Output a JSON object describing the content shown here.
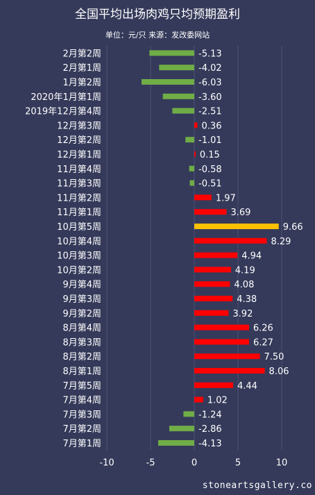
{
  "chart_data": {
    "type": "bar",
    "orientation": "horizontal",
    "title": "全国平均出场肉鸡只均预期盈利",
    "subtitle": "单位：元/只 来源：发改委网站",
    "xlim": [
      -10,
      10
    ],
    "x_ticks": [
      -10,
      -5,
      0,
      5,
      10
    ],
    "grid": true,
    "colors": {
      "positive": "#ff0000",
      "negative": "#70ad47",
      "highlight": "#ffc000"
    },
    "highlight_index": 12,
    "categories": [
      "2月第2周",
      "2月第1周",
      "1月第2周",
      "2020年1月第1周",
      "2019年12月第4周",
      "12月第3周",
      "12月第2周",
      "12月第1周",
      "11月第4周",
      "11月第3周",
      "11月第2周",
      "11月第1周",
      "10月第5周",
      "10月第4周",
      "10月第3周",
      "10月第2周",
      "9月第4周",
      "9月第3周",
      "9月第2周",
      "8月第4周",
      "8月第3周",
      "8月第2周",
      "8月第1周",
      "7月第5周",
      "7月第4周",
      "7月第3周",
      "7月第2周",
      "7月第1周"
    ],
    "values": [
      -5.13,
      -4.02,
      -6.03,
      -3.6,
      -2.51,
      0.36,
      -1.01,
      0.15,
      -0.58,
      -0.51,
      1.97,
      3.69,
      9.66,
      8.29,
      4.94,
      4.19,
      4.08,
      4.38,
      3.92,
      6.26,
      6.27,
      7.5,
      8.06,
      4.44,
      1.02,
      -1.24,
      -2.86,
      -4.13
    ]
  },
  "watermark": "stoneartsgallery.co"
}
